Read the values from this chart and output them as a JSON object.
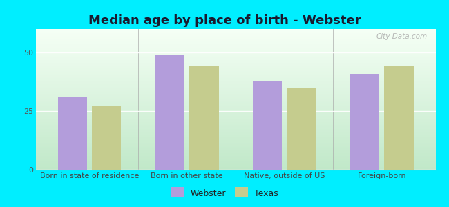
{
  "title": "Median age by place of birth - Webster",
  "categories": [
    "Born in state of residence",
    "Born in other state",
    "Native, outside of US",
    "Foreign-born"
  ],
  "webster_values": [
    31,
    49,
    38,
    41
  ],
  "texas_values": [
    27,
    44,
    35,
    44
  ],
  "bar_color_webster": "#b39ddb",
  "bar_color_texas": "#c5cc8e",
  "legend_labels": [
    "Webster",
    "Texas"
  ],
  "ylim": [
    0,
    60
  ],
  "yticks": [
    0,
    25,
    50
  ],
  "background_outer": "#00eeff",
  "title_fontsize": 13,
  "tick_fontsize": 8,
  "legend_fontsize": 9,
  "watermark": "City-Data.com"
}
